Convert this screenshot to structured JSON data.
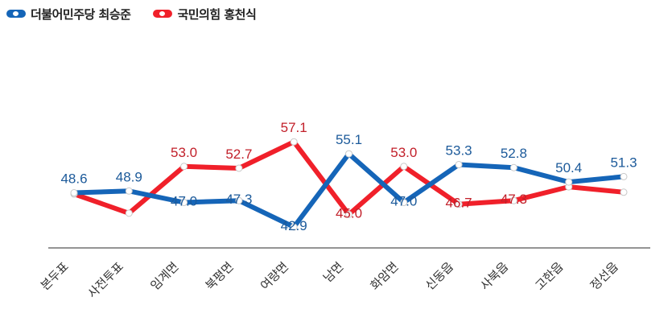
{
  "chart_data": {
    "type": "line",
    "categories": [
      "본두표",
      "사전투표",
      "임계면",
      "북평면",
      "여량면",
      "남면",
      "화암면",
      "신동읍",
      "사북읍",
      "고한읍",
      "정선읍"
    ],
    "series": [
      {
        "name": "더불어민주당 최승준",
        "color": "#1565b8",
        "label_color": "#1c5a9a",
        "values": [
          48.6,
          48.9,
          47.0,
          47.3,
          42.9,
          55.1,
          47.0,
          53.3,
          52.8,
          50.4,
          51.3
        ],
        "labels": [
          "48.6",
          "48.9",
          "47.0",
          "47.3",
          "42.9",
          "55.1",
          "47.0",
          "53.3",
          "52.8",
          "50.4",
          "51.3"
        ]
      },
      {
        "name": "국민의힘 홍천식",
        "color": "#f0202a",
        "label_color": "#c2202a",
        "values": [
          48.4,
          45.2,
          53.0,
          52.7,
          57.1,
          45.0,
          53.0,
          46.7,
          47.3,
          49.6,
          48.7
        ],
        "labels": [
          "",
          "",
          "53.0",
          "52.7",
          "57.1",
          "45.0",
          "53.0",
          "46.7",
          "47.3",
          "",
          ""
        ]
      }
    ],
    "grid": false,
    "legend": "top-left"
  }
}
